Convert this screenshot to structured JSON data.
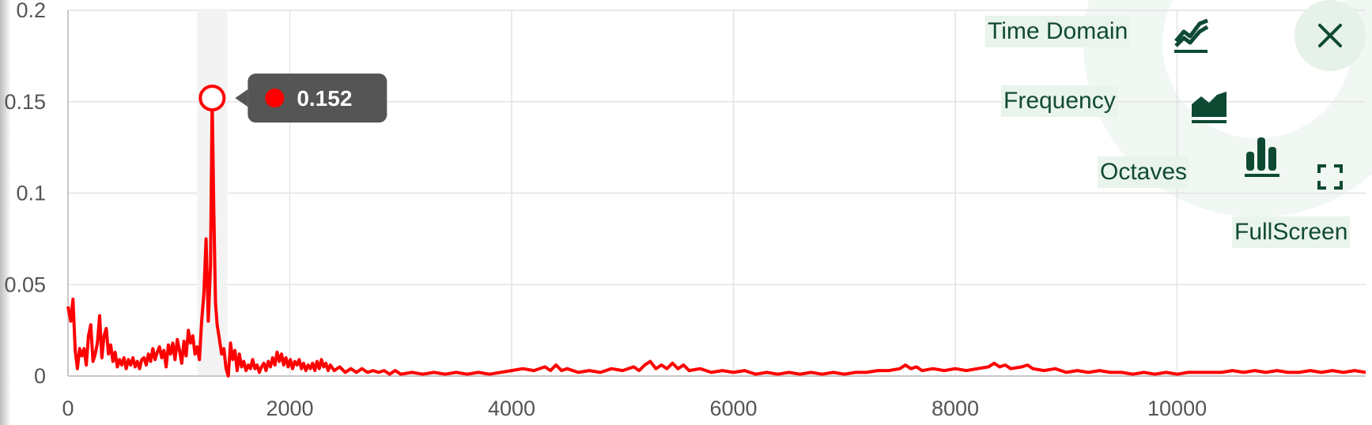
{
  "chart_data": {
    "type": "line",
    "title": "",
    "xlabel": "",
    "ylabel": "",
    "xlim": [
      0,
      11700
    ],
    "ylim": [
      0,
      0.2
    ],
    "x_ticks": [
      "0",
      "2000",
      "4000",
      "6000",
      "8000",
      "10000"
    ],
    "y_ticks": [
      "0",
      "0.05",
      "0.1",
      "0.15",
      "0.2"
    ],
    "grid": true,
    "series": [
      {
        "color": "#ff0000",
        "points": [
          [
            0,
            0.038
          ],
          [
            25,
            0.03
          ],
          [
            45,
            0.042
          ],
          [
            65,
            0.014
          ],
          [
            85,
            0.004
          ],
          [
            105,
            0.015
          ],
          [
            125,
            0.011
          ],
          [
            145,
            0.015
          ],
          [
            165,
            0.006
          ],
          [
            185,
            0.022
          ],
          [
            205,
            0.028
          ],
          [
            225,
            0.008
          ],
          [
            245,
            0.012
          ],
          [
            265,
            0.018
          ],
          [
            285,
            0.033
          ],
          [
            305,
            0.01
          ],
          [
            325,
            0.022
          ],
          [
            345,
            0.026
          ],
          [
            365,
            0.012
          ],
          [
            385,
            0.017
          ],
          [
            405,
            0.008
          ],
          [
            425,
            0.013
          ],
          [
            445,
            0.005
          ],
          [
            465,
            0.009
          ],
          [
            485,
            0.006
          ],
          [
            505,
            0.01
          ],
          [
            525,
            0.004
          ],
          [
            545,
            0.009
          ],
          [
            565,
            0.006
          ],
          [
            585,
            0.01
          ],
          [
            605,
            0.005
          ],
          [
            625,
            0.008
          ],
          [
            645,
            0.004
          ],
          [
            665,
            0.009
          ],
          [
            685,
            0.01
          ],
          [
            705,
            0.006
          ],
          [
            725,
            0.012
          ],
          [
            745,
            0.008
          ],
          [
            765,
            0.015
          ],
          [
            785,
            0.009
          ],
          [
            805,
            0.013
          ],
          [
            825,
            0.016
          ],
          [
            845,
            0.01
          ],
          [
            865,
            0.014
          ],
          [
            885,
            0.005
          ],
          [
            905,
            0.017
          ],
          [
            925,
            0.012
          ],
          [
            945,
            0.018
          ],
          [
            965,
            0.009
          ],
          [
            985,
            0.02
          ],
          [
            1005,
            0.014
          ],
          [
            1025,
            0.007
          ],
          [
            1045,
            0.019
          ],
          [
            1065,
            0.011
          ],
          [
            1085,
            0.025
          ],
          [
            1105,
            0.018
          ],
          [
            1125,
            0.022
          ],
          [
            1145,
            0.012
          ],
          [
            1165,
            0.016
          ],
          [
            1185,
            0.009
          ],
          [
            1205,
            0.03
          ],
          [
            1225,
            0.045
          ],
          [
            1245,
            0.075
          ],
          [
            1265,
            0.03
          ],
          [
            1285,
            0.06
          ],
          [
            1300,
            0.152
          ],
          [
            1315,
            0.09
          ],
          [
            1330,
            0.04
          ],
          [
            1345,
            0.028
          ],
          [
            1365,
            0.02
          ],
          [
            1385,
            0.012
          ],
          [
            1405,
            0.015
          ],
          [
            1425,
            0.004
          ],
          [
            1445,
            0.0
          ],
          [
            1465,
            0.018
          ],
          [
            1485,
            0.009
          ],
          [
            1505,
            0.014
          ],
          [
            1525,
            0.003
          ],
          [
            1545,
            0.012
          ],
          [
            1565,
            0.005
          ],
          [
            1585,
            0.008
          ],
          [
            1605,
            0.003
          ],
          [
            1625,
            0.006
          ],
          [
            1645,
            0.004
          ],
          [
            1665,
            0.009
          ],
          [
            1685,
            0.004
          ],
          [
            1705,
            0.006
          ],
          [
            1725,
            0.002
          ],
          [
            1745,
            0.005
          ],
          [
            1765,
            0.007
          ],
          [
            1785,
            0.003
          ],
          [
            1805,
            0.008
          ],
          [
            1825,
            0.005
          ],
          [
            1845,
            0.01
          ],
          [
            1865,
            0.006
          ],
          [
            1885,
            0.013
          ],
          [
            1905,
            0.008
          ],
          [
            1925,
            0.012
          ],
          [
            1945,
            0.006
          ],
          [
            1965,
            0.01
          ],
          [
            1985,
            0.005
          ],
          [
            2005,
            0.009
          ],
          [
            2025,
            0.004
          ],
          [
            2045,
            0.008
          ],
          [
            2065,
            0.006
          ],
          [
            2085,
            0.009
          ],
          [
            2105,
            0.004
          ],
          [
            2125,
            0.007
          ],
          [
            2145,
            0.003
          ],
          [
            2165,
            0.006
          ],
          [
            2185,
            0.004
          ],
          [
            2205,
            0.007
          ],
          [
            2225,
            0.003
          ],
          [
            2245,
            0.008
          ],
          [
            2265,
            0.004
          ],
          [
            2285,
            0.009
          ],
          [
            2305,
            0.005
          ],
          [
            2325,
            0.007
          ],
          [
            2345,
            0.003
          ],
          [
            2365,
            0.006
          ],
          [
            2400,
            0.003
          ],
          [
            2450,
            0.005
          ],
          [
            2500,
            0.002
          ],
          [
            2550,
            0.004
          ],
          [
            2600,
            0.002
          ],
          [
            2650,
            0.004
          ],
          [
            2700,
            0.002
          ],
          [
            2750,
            0.003
          ],
          [
            2800,
            0.002
          ],
          [
            2850,
            0.003
          ],
          [
            2900,
            0.001
          ],
          [
            2950,
            0.003
          ],
          [
            3000,
            0.001
          ],
          [
            3100,
            0.002
          ],
          [
            3200,
            0.001
          ],
          [
            3300,
            0.002
          ],
          [
            3400,
            0.001
          ],
          [
            3500,
            0.002
          ],
          [
            3600,
            0.001
          ],
          [
            3700,
            0.002
          ],
          [
            3800,
            0.001
          ],
          [
            3900,
            0.002
          ],
          [
            4000,
            0.003
          ],
          [
            4100,
            0.004
          ],
          [
            4200,
            0.003
          ],
          [
            4300,
            0.005
          ],
          [
            4350,
            0.003
          ],
          [
            4400,
            0.006
          ],
          [
            4450,
            0.003
          ],
          [
            4500,
            0.004
          ],
          [
            4600,
            0.002
          ],
          [
            4700,
            0.003
          ],
          [
            4800,
            0.002
          ],
          [
            4900,
            0.004
          ],
          [
            5000,
            0.003
          ],
          [
            5100,
            0.005
          ],
          [
            5150,
            0.003
          ],
          [
            5200,
            0.006
          ],
          [
            5250,
            0.008
          ],
          [
            5300,
            0.004
          ],
          [
            5350,
            0.006
          ],
          [
            5400,
            0.004
          ],
          [
            5450,
            0.007
          ],
          [
            5500,
            0.004
          ],
          [
            5550,
            0.006
          ],
          [
            5600,
            0.003
          ],
          [
            5700,
            0.004
          ],
          [
            5800,
            0.002
          ],
          [
            5900,
            0.003
          ],
          [
            6000,
            0.002
          ],
          [
            6100,
            0.003
          ],
          [
            6200,
            0.001
          ],
          [
            6300,
            0.002
          ],
          [
            6400,
            0.001
          ],
          [
            6500,
            0.002
          ],
          [
            6600,
            0.001
          ],
          [
            6700,
            0.002
          ],
          [
            6800,
            0.001
          ],
          [
            6900,
            0.002
          ],
          [
            7000,
            0.001
          ],
          [
            7100,
            0.002
          ],
          [
            7200,
            0.002
          ],
          [
            7300,
            0.003
          ],
          [
            7400,
            0.003
          ],
          [
            7500,
            0.004
          ],
          [
            7550,
            0.006
          ],
          [
            7600,
            0.004
          ],
          [
            7650,
            0.005
          ],
          [
            7700,
            0.003
          ],
          [
            7800,
            0.004
          ],
          [
            7900,
            0.003
          ],
          [
            8000,
            0.004
          ],
          [
            8100,
            0.003
          ],
          [
            8200,
            0.004
          ],
          [
            8300,
            0.005
          ],
          [
            8350,
            0.007
          ],
          [
            8400,
            0.005
          ],
          [
            8450,
            0.006
          ],
          [
            8500,
            0.004
          ],
          [
            8600,
            0.005
          ],
          [
            8650,
            0.006
          ],
          [
            8700,
            0.004
          ],
          [
            8800,
            0.003
          ],
          [
            8900,
            0.004
          ],
          [
            9000,
            0.002
          ],
          [
            9100,
            0.003
          ],
          [
            9200,
            0.002
          ],
          [
            9300,
            0.003
          ],
          [
            9400,
            0.002
          ],
          [
            9500,
            0.002
          ],
          [
            9600,
            0.001
          ],
          [
            9700,
            0.002
          ],
          [
            9800,
            0.001
          ],
          [
            9900,
            0.002
          ],
          [
            10000,
            0.001
          ],
          [
            10100,
            0.002
          ],
          [
            10200,
            0.002
          ],
          [
            10300,
            0.002
          ],
          [
            10400,
            0.002
          ],
          [
            10500,
            0.003
          ],
          [
            10600,
            0.002
          ],
          [
            10700,
            0.003
          ],
          [
            10800,
            0.002
          ],
          [
            10900,
            0.003
          ],
          [
            11000,
            0.002
          ],
          [
            11100,
            0.002
          ],
          [
            11200,
            0.003
          ],
          [
            11300,
            0.002
          ],
          [
            11400,
            0.003
          ],
          [
            11500,
            0.002
          ],
          [
            11600,
            0.003
          ],
          [
            11700,
            0.002
          ]
        ]
      }
    ],
    "highlight": {
      "x": 1300,
      "y": 0.152,
      "label": "0.152"
    }
  },
  "menu": {
    "time_domain": "Time Domain",
    "frequency": "Frequency",
    "octaves": "Octaves",
    "fullscreen": "FullScreen"
  },
  "colors": {
    "series": "#ff0000",
    "menu_text": "#114a32",
    "menu_bg": "#e9f4ec",
    "icon": "#0e4a33",
    "tooltip_bg": "#555555"
  },
  "icons": {
    "time_domain": "line-chart-icon",
    "frequency": "area-chart-icon",
    "octaves": "bar-chart-icon",
    "fullscreen": "fullscreen-icon",
    "close": "close-icon"
  }
}
